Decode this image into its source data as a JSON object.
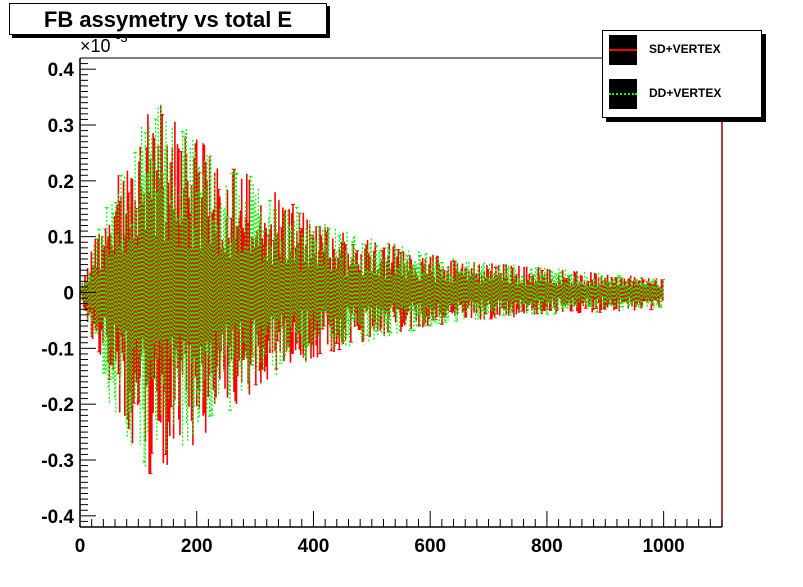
{
  "title": "FB assymetry vs total E",
  "colors": {
    "frame": "#000000",
    "background": "#ffffff",
    "sd_vertex": "#ff0000",
    "dd_vertex": "#00ff00",
    "right_axis": "#8b0000"
  },
  "chart_data": {
    "type": "scatter",
    "title": "FB assymetry vs total E",
    "xlabel": "",
    "ylabel": "",
    "xlim": [
      0,
      1100
    ],
    "ylim": [
      -0.42,
      0.42
    ],
    "y_multiplier_label": "×10",
    "y_multiplier_exponent": "-3",
    "x_ticks": [
      0,
      200,
      400,
      600,
      800,
      1000
    ],
    "x_tick_labels": [
      "0",
      "200",
      "400",
      "600",
      "800",
      "1000"
    ],
    "y_ticks": [
      -0.4,
      -0.3,
      -0.2,
      -0.1,
      0,
      0.1,
      0.2,
      0.3,
      0.4
    ],
    "y_tick_labels": [
      "-0.4",
      "-0.3",
      "-0.2",
      "-0.1",
      "0",
      "0.1",
      "0.2",
      "0.3",
      "0.4"
    ],
    "grid": false,
    "legend_position": "top-right",
    "envelope": {
      "x": [
        0,
        20,
        50,
        100,
        130,
        150,
        200,
        250,
        300,
        350,
        400,
        500,
        600,
        700,
        800,
        900,
        1000
      ],
      "upper": [
        0.0,
        0.08,
        0.17,
        0.3,
        0.37,
        0.33,
        0.28,
        0.24,
        0.21,
        0.17,
        0.13,
        0.1,
        0.07,
        0.055,
        0.045,
        0.035,
        0.025
      ],
      "lower": [
        0.0,
        -0.09,
        -0.2,
        -0.31,
        -0.34,
        -0.31,
        -0.27,
        -0.22,
        -0.18,
        -0.14,
        -0.12,
        -0.09,
        -0.06,
        -0.05,
        -0.04,
        -0.035,
        -0.03
      ]
    },
    "series": [
      {
        "name": "SD+VERTEX",
        "style": "solid",
        "error_bars": true
      },
      {
        "name": "DD+VERTEX",
        "style": "dotted",
        "error_bars": true
      }
    ]
  }
}
